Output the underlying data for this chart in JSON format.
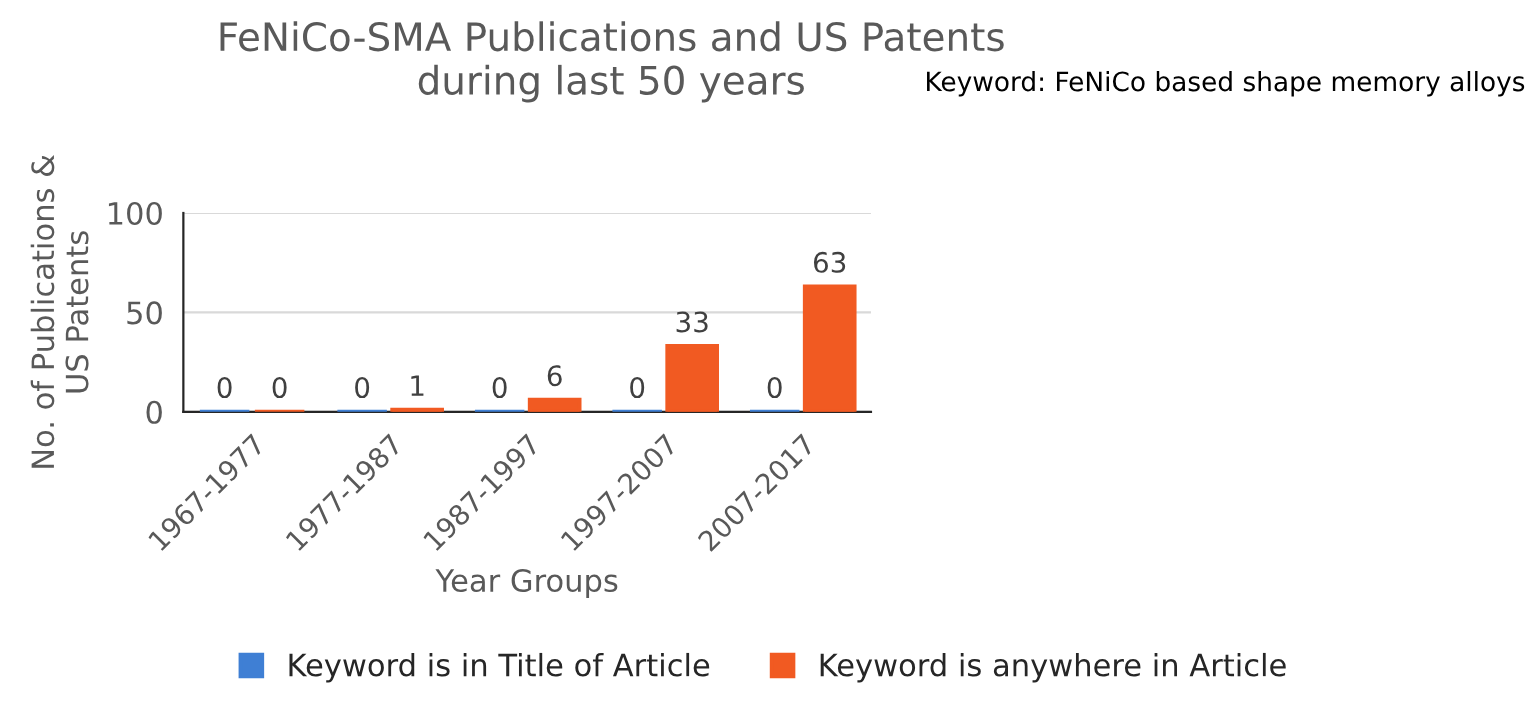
{
  "chart_data": {
    "type": "bar",
    "title": "FeNiCo-SMA Publications and US Patents\nduring last 50 years",
    "annotations": [
      "Keyword: FeNiCo based shape memory alloys"
    ],
    "xlabel": "Year Groups",
    "ylabel": "No. of Publications &\nUS Patents",
    "categories": [
      "1967-1977",
      "1977-1987",
      "1987-1997",
      "1997-2007",
      "2007-2017"
    ],
    "series": [
      {
        "name": "Keyword is in Title of Article",
        "color": "#3f7fd4",
        "values": [
          0,
          0,
          0,
          0,
          0
        ]
      },
      {
        "name": "Keyword is anywhere in Article",
        "color": "#f15a22",
        "values": [
          0,
          1,
          6,
          33,
          63
        ]
      }
    ],
    "ylim": [
      0,
      100
    ],
    "yticks": [
      0,
      50,
      100
    ],
    "grid": "y",
    "legend": "bottom",
    "data_labels": true
  }
}
